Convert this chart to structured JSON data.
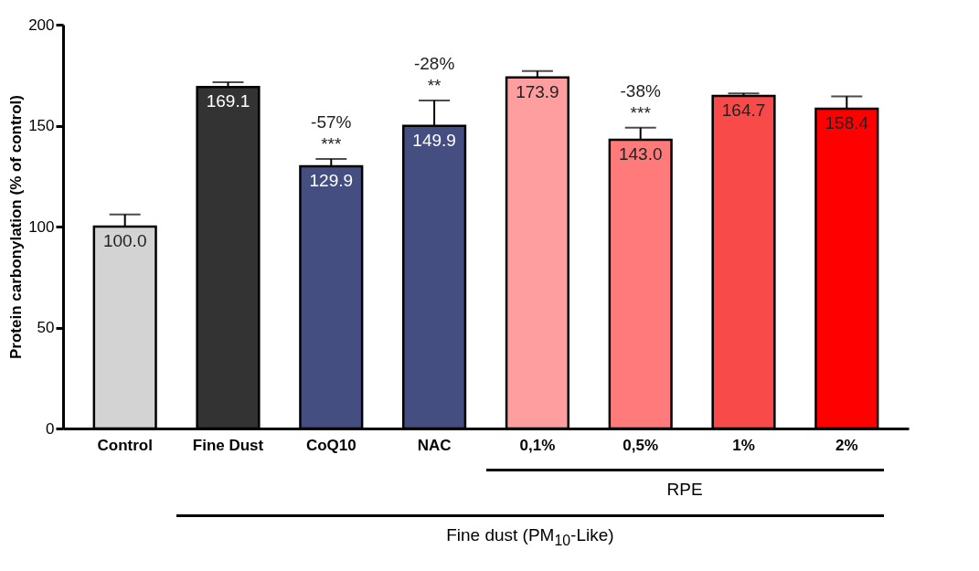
{
  "chart_data": {
    "type": "bar",
    "ylabel": "Protein carbonylation (% of control)",
    "categories": [
      "Control",
      "Fine Dust",
      "CoQ10",
      "NAC",
      "0,1%",
      "0,5%",
      "1%",
      "2%"
    ],
    "values": [
      100.0,
      169.1,
      129.9,
      149.9,
      173.9,
      143.0,
      164.7,
      158.4
    ],
    "colors": [
      "#d3d3d3",
      "#333333",
      "#454e80",
      "#454e80",
      "#ff9e9e",
      "#ff7b7b",
      "#f94a4a",
      "#ff0000"
    ],
    "errors": [
      [
        100.0,
        106
      ],
      [
        169.1,
        171.5
      ],
      [
        129.9,
        133.5
      ],
      [
        149.9,
        162.5
      ],
      [
        173.9,
        177
      ],
      [
        143.0,
        149
      ],
      [
        164.7,
        166
      ],
      [
        158.4,
        164.5
      ]
    ],
    "value_labels": [
      "100.0",
      "169.1",
      "129.9",
      "149.9",
      "173.9",
      "143.0",
      "164.7",
      "158.4"
    ],
    "ylim": [
      0,
      200
    ],
    "yticks": [
      0,
      50,
      100,
      150,
      200
    ],
    "grid": false,
    "legend": false,
    "annotations": [
      {
        "text": "-57%",
        "x": "CoQ10",
        "y": 129.9
      },
      {
        "text": "***",
        "x": "CoQ10",
        "y": 129.9
      },
      {
        "text": "-28%",
        "x": "NAC",
        "y": 162.5
      },
      {
        "text": "**",
        "x": "NAC",
        "y": 162.5
      },
      {
        "text": "-38%",
        "x": "0,5%",
        "y": 143.0
      },
      {
        "text": "***",
        "x": "0,5%",
        "y": 143.0
      },
      "RPE",
      "Fine dust (PM$_{10}$-Like)"
    ]
  }
}
